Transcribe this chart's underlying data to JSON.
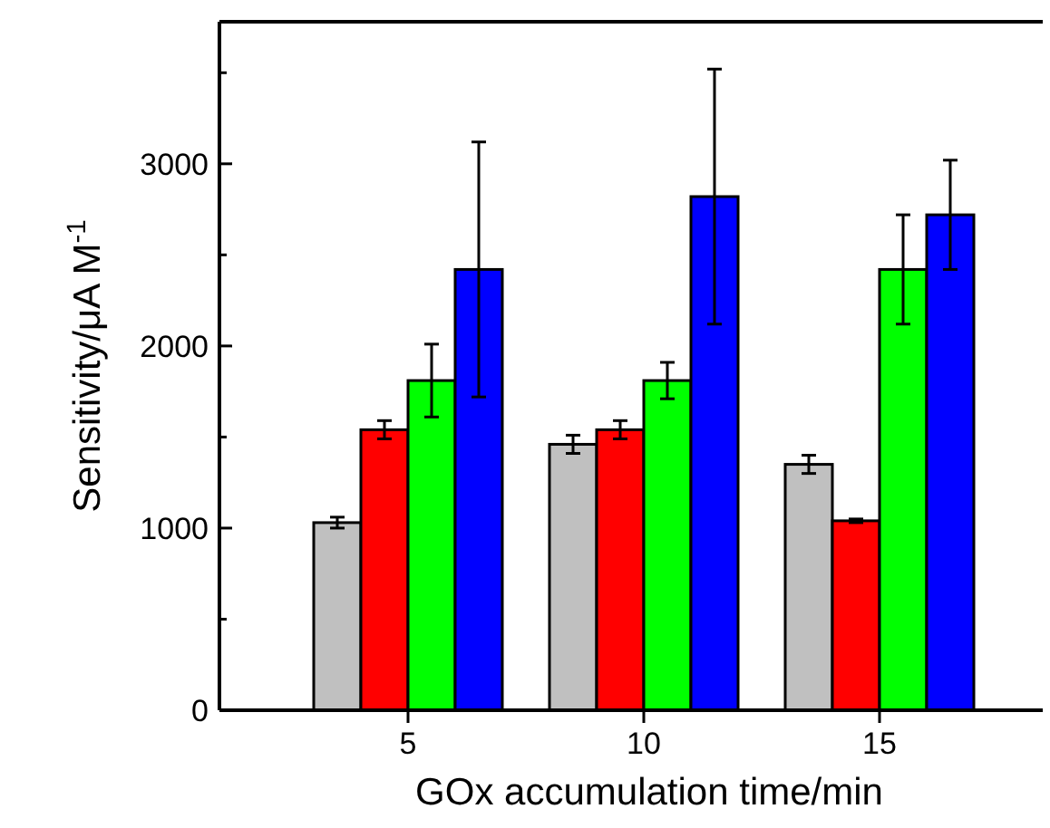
{
  "chart_data": {
    "type": "bar",
    "xlabel": "GOx accumulation time/min",
    "ylabel": "Sensitivity/μA M$^{-1}$",
    "categories": [
      "5",
      "10",
      "15"
    ],
    "series": [
      {
        "color": "#c0c0c0",
        "values": [
          1030,
          1460,
          1350
        ],
        "errors": [
          30,
          50,
          50
        ]
      },
      {
        "color": "#ff0000",
        "values": [
          1540,
          1540,
          1040
        ],
        "errors": [
          50,
          50,
          10
        ]
      },
      {
        "color": "#00ff00",
        "values": [
          1810,
          1810,
          2420
        ],
        "errors": [
          200,
          100,
          300
        ]
      },
      {
        "color": "#0000ff",
        "values": [
          2420,
          2820,
          2720
        ],
        "errors": [
          700,
          700,
          300
        ]
      }
    ],
    "ylim": [
      0,
      3780
    ],
    "yticks": [
      0,
      {
        "value": 500,
        "label": null
      },
      1000,
      {
        "value": 1500,
        "label": null
      },
      2000,
      {
        "value": 2500,
        "label": null
      },
      3000,
      {
        "value": 3500,
        "label": null
      }
    ],
    "grid": false
  }
}
